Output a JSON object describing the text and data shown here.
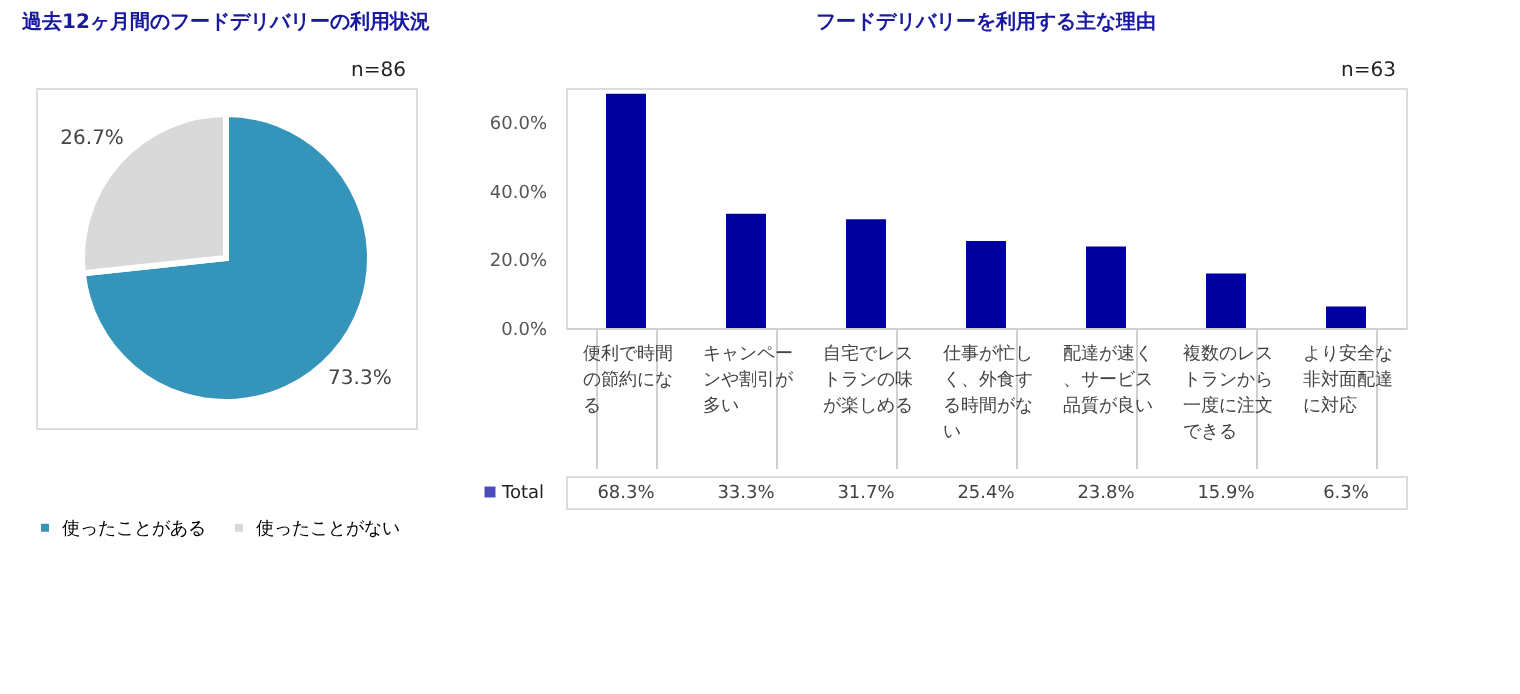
{
  "chart_data": [
    {
      "type": "pie",
      "title": "過去12ヶ月間のフードデリバリーの利用状況",
      "categories": [
        "使ったことがある",
        "使ったことがない"
      ],
      "values": [
        73.3,
        26.7
      ],
      "colors": [
        "#3494ba",
        "#d9d9d9"
      ],
      "value_labels": [
        "73.3%",
        "26.7%"
      ],
      "legend": "bottom",
      "annotations": [
        "n=86"
      ]
    },
    {
      "type": "bar",
      "title": "フードデリバリーを利用する主な理由",
      "categories": [
        "便利で時間の節約になる",
        "キャンペーンや割引が多い",
        "自宅でレストランの味が楽しめる",
        "仕事が忙しく、外食する時間がない",
        "配達が速く、サービス品質が良い",
        "複数のレストランから一度に注文できる",
        "より安全な非対面配達に対応"
      ],
      "series": [
        {
          "name": "Total",
          "color": "#0000a0",
          "values": [
            68.3,
            33.3,
            31.7,
            25.4,
            23.8,
            15.9,
            6.3
          ],
          "value_labels": [
            "68.3%",
            "33.3%",
            "31.7%",
            "25.4%",
            "23.8%",
            "15.9%",
            "6.3%"
          ]
        }
      ],
      "ylim": [
        0,
        70
      ],
      "yticks": [
        {
          "value": 0,
          "label": "0.0%"
        },
        {
          "value": 20,
          "label": "20.0%"
        },
        {
          "value": 40,
          "label": "40.0%"
        },
        {
          "value": 60,
          "label": "60.0%"
        }
      ],
      "grid": false,
      "legend": "bottom left",
      "annotations": [
        "n=63"
      ]
    }
  ]
}
